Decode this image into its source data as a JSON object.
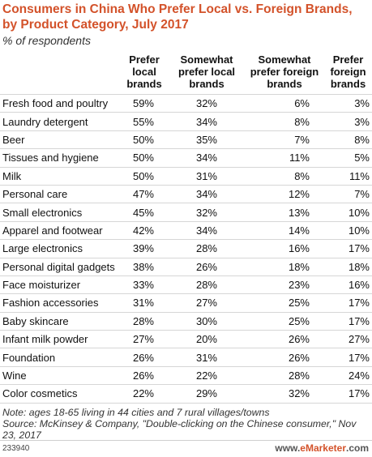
{
  "chart_data": {
    "type": "table",
    "title": "Consumers in China Who Prefer Local vs. Foreign Brands, by Product Category, July 2017",
    "subtitle": "% of respondents",
    "columns": [
      "Prefer local brands",
      "Somewhat prefer local brands",
      "Somewhat prefer foreign brands",
      "Prefer foreign brands"
    ],
    "rows": [
      {
        "category": "Fresh food and poultry",
        "values": [
          "59%",
          "32%",
          "6%",
          "3%"
        ]
      },
      {
        "category": "Laundry detergent",
        "values": [
          "55%",
          "34%",
          "8%",
          "3%"
        ]
      },
      {
        "category": "Beer",
        "values": [
          "50%",
          "35%",
          "7%",
          "8%"
        ]
      },
      {
        "category": "Tissues and hygiene",
        "values": [
          "50%",
          "34%",
          "11%",
          "5%"
        ]
      },
      {
        "category": "Milk",
        "values": [
          "50%",
          "31%",
          "8%",
          "11%"
        ]
      },
      {
        "category": "Personal care",
        "values": [
          "47%",
          "34%",
          "12%",
          "7%"
        ]
      },
      {
        "category": "Small electronics",
        "values": [
          "45%",
          "32%",
          "13%",
          "10%"
        ]
      },
      {
        "category": "Apparel and footwear",
        "values": [
          "42%",
          "34%",
          "14%",
          "10%"
        ]
      },
      {
        "category": "Large electronics",
        "values": [
          "39%",
          "28%",
          "16%",
          "17%"
        ]
      },
      {
        "category": "Personal digital gadgets",
        "values": [
          "38%",
          "26%",
          "18%",
          "18%"
        ]
      },
      {
        "category": "Face moisturizer",
        "values": [
          "33%",
          "28%",
          "23%",
          "16%"
        ]
      },
      {
        "category": "Fashion accessories",
        "values": [
          "31%",
          "27%",
          "25%",
          "17%"
        ]
      },
      {
        "category": "Baby skincare",
        "values": [
          "28%",
          "30%",
          "25%",
          "17%"
        ]
      },
      {
        "category": "Infant milk powder",
        "values": [
          "27%",
          "20%",
          "26%",
          "27%"
        ]
      },
      {
        "category": "Foundation",
        "values": [
          "26%",
          "31%",
          "26%",
          "17%"
        ]
      },
      {
        "category": "Wine",
        "values": [
          "26%",
          "22%",
          "28%",
          "24%"
        ]
      },
      {
        "category": "Color cosmetics",
        "values": [
          "22%",
          "29%",
          "32%",
          "17%"
        ]
      }
    ],
    "note": "Note: ages 18-65 living in 44 cities and 7 rural villages/towns",
    "source": "Source: McKinsey & Company, \"Double-clicking on the Chinese consumer,\" Nov 23, 2017",
    "chart_id": "233940",
    "brand_prefix": "www.",
    "brand_name": "eMarketer",
    "brand_suffix": ".com"
  }
}
